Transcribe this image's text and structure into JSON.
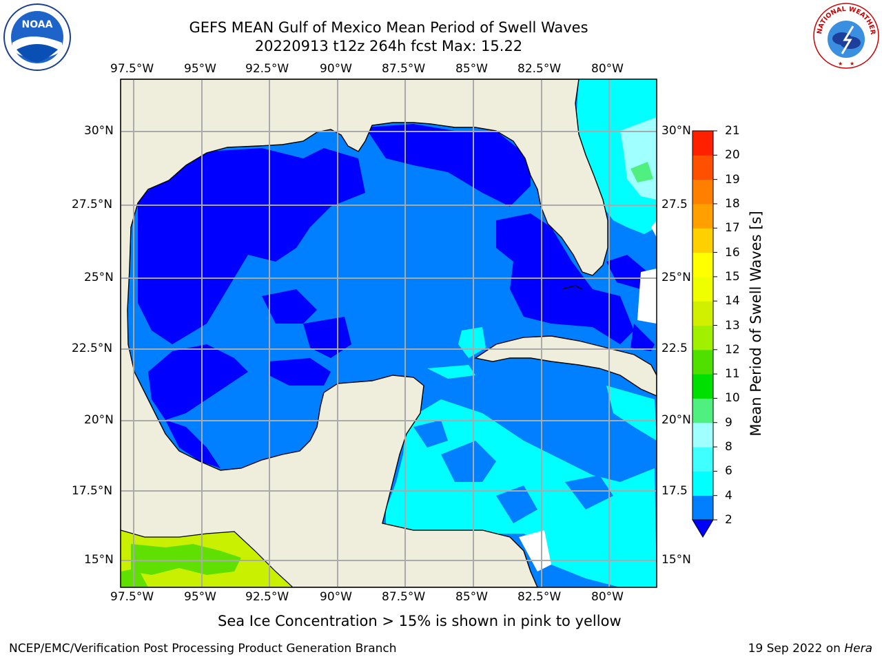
{
  "header": {
    "title": "GEFS MEAN Gulf of Mexico Mean Period of Swell Waves",
    "subtitle": "20220913 t12z 264h fcst   Max: 15.22"
  },
  "logos": {
    "left_text": "NOAA",
    "right_arc_text": "NATIONAL WEATHER SERVICE"
  },
  "map": {
    "lon_ticks": [
      "97.5°W",
      "95°W",
      "92.5°W",
      "90°W",
      "87.5°W",
      "85°W",
      "82.5°W",
      "80°W"
    ],
    "lat_ticks_left": [
      "30°N",
      "27.5°N",
      "25°N",
      "22.5°N",
      "20°N",
      "17.5°N",
      "15°N"
    ],
    "lat_ticks_right": [
      "30°N",
      "27.5",
      "25°N",
      "22.5",
      "20°N",
      "17.5",
      "15°N"
    ],
    "land_color": "#efeedc",
    "grid_color": "#aaaaaa"
  },
  "colorbar": {
    "label": "Mean Period of Swell Waves [s]",
    "levels": [
      "2",
      "4",
      "6",
      "8",
      "9",
      "10",
      "11",
      "12",
      "13",
      "14",
      "15",
      "16",
      "17",
      "18",
      "19",
      "20",
      "21"
    ],
    "colors": [
      "#0000ff",
      "#0080ff",
      "#00ffff",
      "#40ffff",
      "#a0ffff",
      "#50f080",
      "#00e000",
      "#50e000",
      "#a0f000",
      "#d0f000",
      "#f0ff00",
      "#ffff00",
      "#ffd000",
      "#ffa000",
      "#ff8000",
      "#ff5000",
      "#ff2000",
      "#ff0000"
    ]
  },
  "notes": {
    "sea_ice": "Sea Ice Concentration > 15% is shown in pink to yellow"
  },
  "footer": {
    "left": "NCEP/EMC/Verification Post Processing Product Generation Branch",
    "date": "19 Sep 2022 on",
    "machine": "Hera"
  }
}
